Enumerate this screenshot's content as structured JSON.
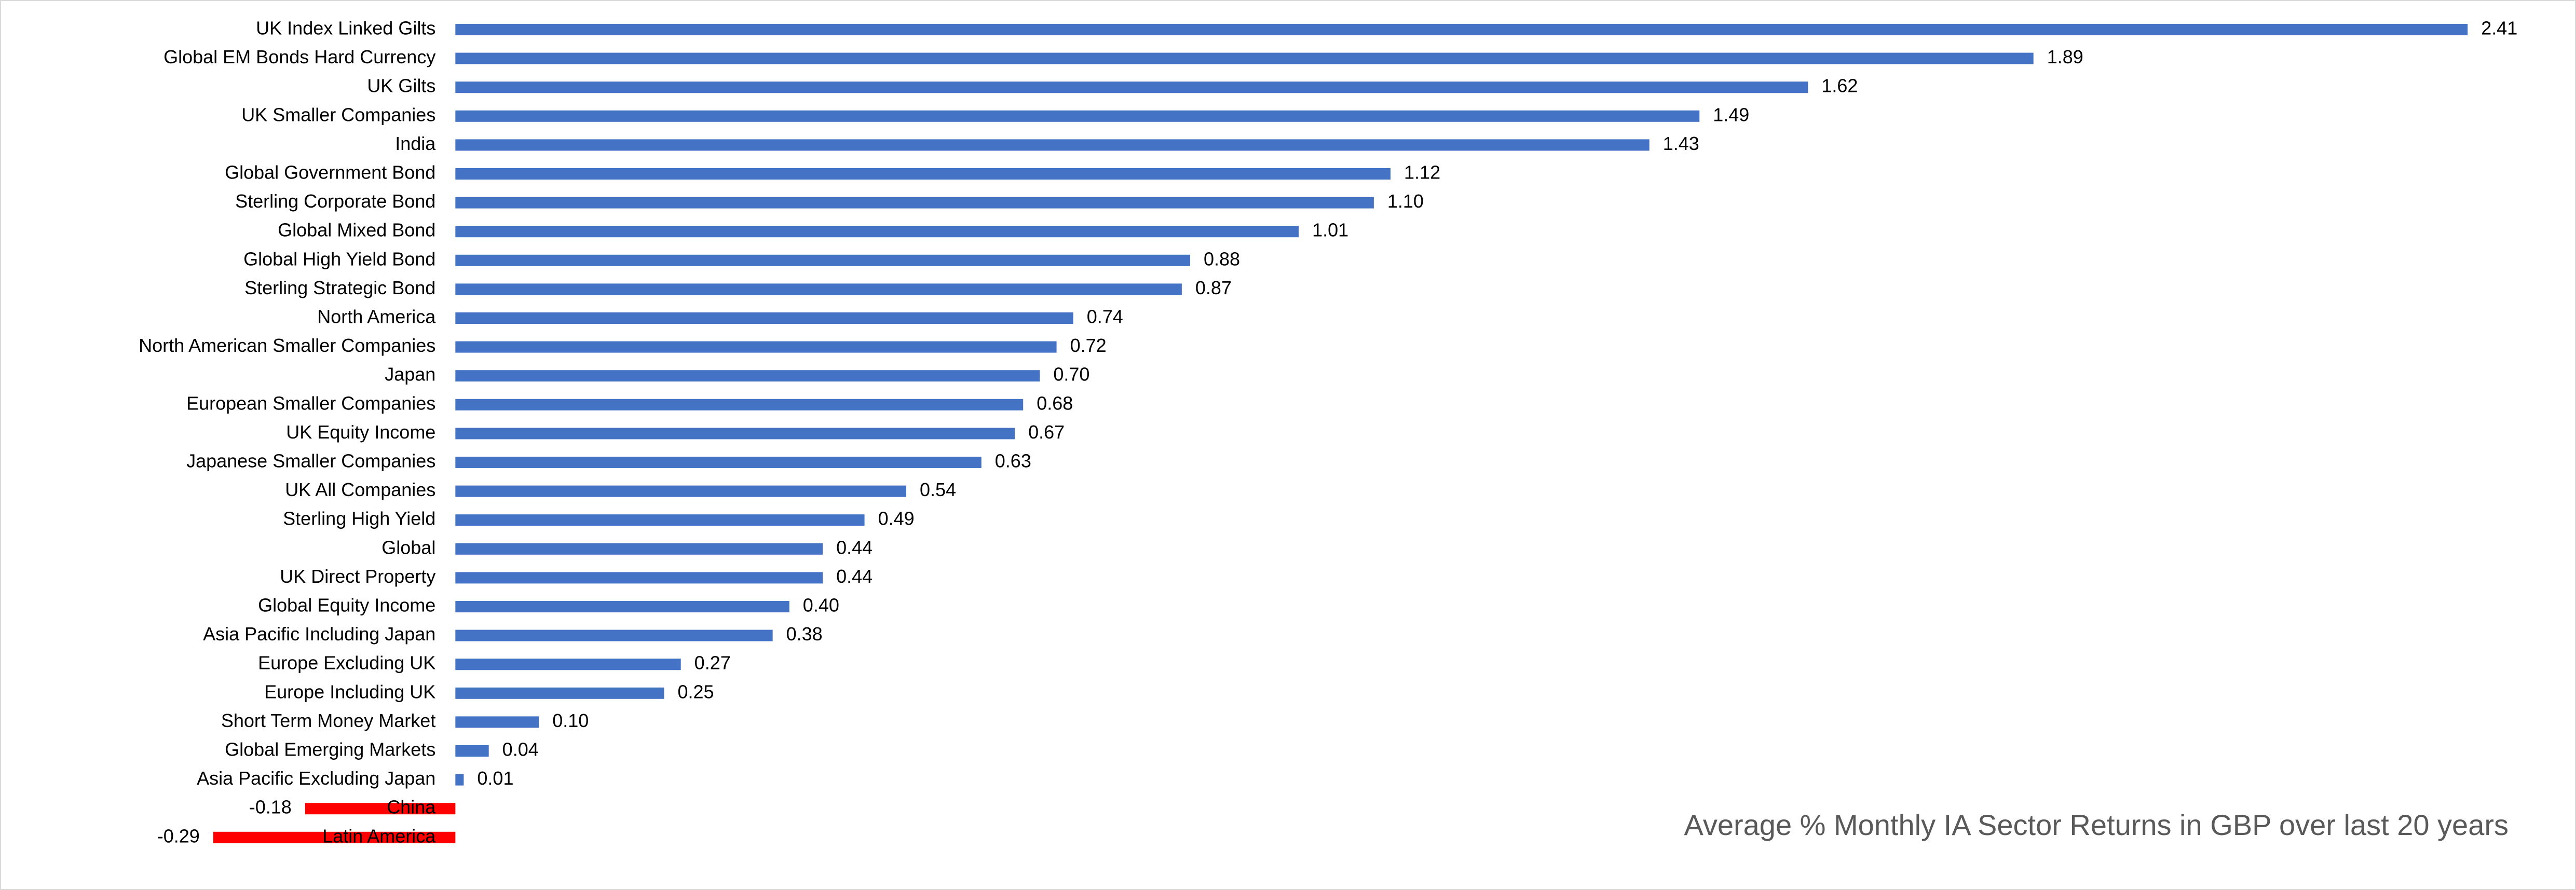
{
  "chart_data": {
    "type": "bar",
    "orientation": "horizontal",
    "title": "Average % Monthly IA Sector Returns in GBP over last 20 years",
    "categories": [
      "UK Index Linked Gilts",
      "Global EM Bonds Hard Currency",
      "UK Gilts",
      "UK Smaller Companies",
      "India",
      "Global Government Bond",
      "Sterling Corporate Bond",
      "Global Mixed Bond",
      "Global High Yield Bond",
      "Sterling Strategic Bond",
      "North America",
      "North American Smaller Companies",
      "Japan",
      "European Smaller Companies",
      "UK Equity Income",
      "Japanese Smaller Companies",
      "UK All Companies",
      "Sterling High Yield",
      "Global",
      "UK Direct Property",
      "Global Equity Income",
      "Asia Pacific Including Japan",
      "Europe Excluding UK",
      "Europe Including UK",
      "Short Term Money Market",
      "Global Emerging Markets",
      "Asia Pacific Excluding Japan",
      "China",
      "Latin America"
    ],
    "values": [
      2.41,
      1.89,
      1.62,
      1.49,
      1.43,
      1.12,
      1.1,
      1.01,
      0.88,
      0.87,
      0.74,
      0.72,
      0.7,
      0.68,
      0.67,
      0.63,
      0.54,
      0.49,
      0.44,
      0.44,
      0.4,
      0.38,
      0.27,
      0.25,
      0.1,
      0.04,
      0.01,
      -0.18,
      -0.29
    ],
    "value_labels": [
      "2.41",
      "1.89",
      "1.62",
      "1.49",
      "1.43",
      "1.12",
      "1.10",
      "1.01",
      "0.88",
      "0.87",
      "0.74",
      "0.72",
      "0.70",
      "0.68",
      "0.67",
      "0.63",
      "0.54",
      "0.49",
      "0.44",
      "0.44",
      "0.40",
      "0.38",
      "0.27",
      "0.25",
      "0.10",
      "0.04",
      "0.01",
      "-0.18",
      "-0.29"
    ],
    "color": "#4472c4",
    "negative_color": "#ff0000",
    "xlim": [
      -0.5,
      2.5
    ]
  }
}
